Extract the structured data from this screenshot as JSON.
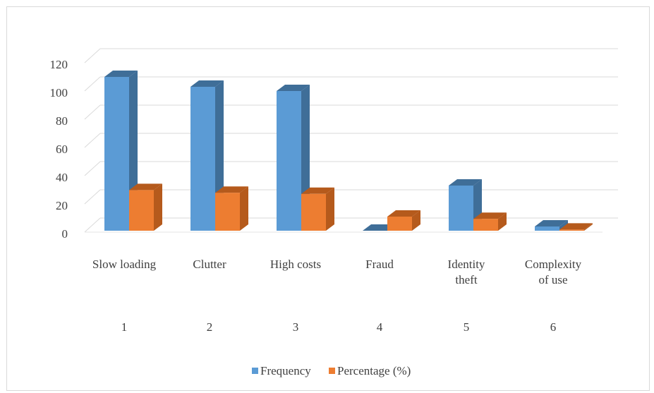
{
  "chart_data": {
    "type": "bar",
    "style": "3d-clustered-column",
    "categories": [
      "Slow loading",
      "Clutter",
      "High costs",
      "Fraud",
      "Identity theft",
      "Complexity of use"
    ],
    "category_numbers": [
      "1",
      "2",
      "3",
      "4",
      "5",
      "6"
    ],
    "series": [
      {
        "name": "Frequency",
        "color": "#5b9bd5",
        "side_color": "#3f6e98",
        "values": [
          109,
          102,
          99,
          0,
          32,
          3
        ]
      },
      {
        "name": "Percentage (%)",
        "color": "#ed7d31",
        "side_color": "#b55a1c",
        "values": [
          28.8,
          26.9,
          26.1,
          10.0,
          8.4,
          0.8
        ]
      }
    ],
    "y_ticks": [
      "0",
      "20",
      "40",
      "60",
      "80",
      "100",
      "120"
    ],
    "ylim": [
      0,
      120
    ],
    "grid": true,
    "legend_position": "bottom",
    "title": "",
    "xlabel": "",
    "ylabel": ""
  }
}
